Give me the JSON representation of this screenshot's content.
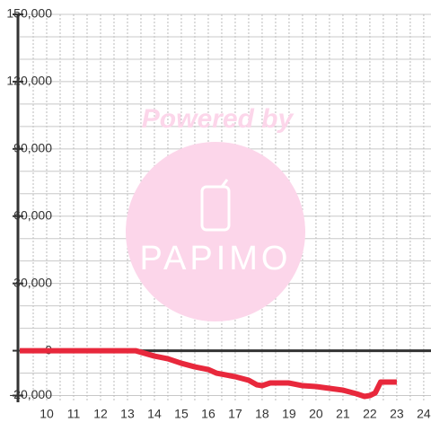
{
  "chart_data": {
    "type": "line",
    "watermark": {
      "top": "Powered by",
      "brand": "PAPIMO"
    },
    "x": [
      9,
      13.3,
      14,
      14.5,
      15,
      15.5,
      16,
      16.3,
      17,
      17.5,
      17.8,
      18,
      18.3,
      19,
      19.5,
      20,
      20.5,
      21,
      21.5,
      21.8,
      22,
      22.2,
      22.4,
      23
    ],
    "series": [
      {
        "color": "#e8283c",
        "values": [
          0,
          0,
          -2400,
          -3600,
          -5600,
          -7200,
          -8400,
          -10000,
          -11600,
          -13200,
          -15200,
          -15600,
          -14400,
          -14400,
          -15600,
          -16000,
          -16800,
          -17600,
          -19200,
          -20400,
          -20000,
          -18800,
          -14000,
          -14000
        ]
      }
    ],
    "xlim": [
      9,
      24.27
    ],
    "ylim": [
      -23000,
      150000
    ],
    "xticks": [
      10,
      11,
      12,
      13,
      14,
      15,
      16,
      17,
      18,
      19,
      20,
      21,
      22,
      23,
      24
    ],
    "x_minor_ticks": [
      9.5,
      10.5,
      11.5,
      12.5,
      13.5,
      14.5,
      15.5,
      16.5,
      17.5,
      18.5,
      19.5,
      20.5,
      21.5,
      22.5,
      23.5
    ],
    "yticks": [
      {
        "value": -20000,
        "label": "-20,000"
      },
      0,
      {
        "value": 30000,
        "label": "30,000"
      },
      {
        "value": 60000,
        "label": "60,000"
      },
      {
        "value": 90000,
        "label": "90,000"
      },
      {
        "value": 120000,
        "label": "120,000"
      },
      {
        "value": 150000,
        "label": "150,000"
      }
    ],
    "y_minor_ticks": [
      -10000,
      10000,
      20000,
      40000,
      50000,
      70000,
      80000,
      100000,
      110000,
      130000,
      140000
    ],
    "grid": true
  }
}
